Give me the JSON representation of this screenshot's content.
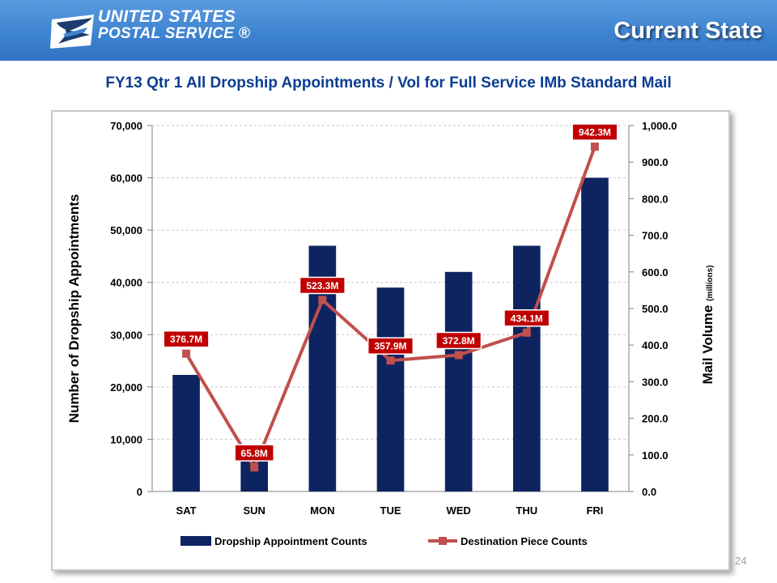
{
  "header": {
    "logo_line1": "UNITED STATES",
    "logo_line2": "POSTAL SERVICE ®",
    "page_title": "Current State"
  },
  "subtitle": "FY13 Qtr 1 All Dropship Appointments / Vol for Full Service IMb Standard Mail",
  "page_number": "24",
  "colors": {
    "header_blue": "#3f84d1",
    "bar_navy": "#0d2461",
    "line_red": "#c0504d",
    "label_red": "#c00000",
    "title_blue": "#0b3d91"
  },
  "chart_data": {
    "type": "bar",
    "categories": [
      "SAT",
      "SUN",
      "MON",
      "TUE",
      "WED",
      "THU",
      "FRI"
    ],
    "series": [
      {
        "name": "Dropship Appointment Counts",
        "type": "bar",
        "axis": "left",
        "values": [
          22300,
          6000,
          47000,
          39000,
          42000,
          47000,
          60000
        ]
      },
      {
        "name": "Destination Piece Counts",
        "type": "line",
        "axis": "right",
        "values": [
          376.7,
          65.8,
          523.3,
          357.9,
          372.8,
          434.1,
          942.3
        ],
        "labels": [
          "376.7M",
          "65.8M",
          "523.3M",
          "357.9M",
          "372.8M",
          "434.1M",
          "942.3M"
        ]
      }
    ],
    "y_left": {
      "label": "Number of Dropship Appointments",
      "range": [
        0,
        70000
      ],
      "ticks": [
        "0",
        "10,000",
        "20,000",
        "30,000",
        "40,000",
        "50,000",
        "60,000",
        "70,000"
      ]
    },
    "y_right": {
      "label": "Mail Volume",
      "label_suffix": "(millions)",
      "range": [
        0,
        1000
      ],
      "ticks": [
        "0.0",
        "100.0",
        "200.0",
        "300.0",
        "400.0",
        "500.0",
        "600.0",
        "700.0",
        "800.0",
        "900.0",
        "1,000.0"
      ]
    },
    "grid": true,
    "legend": "bottom"
  }
}
